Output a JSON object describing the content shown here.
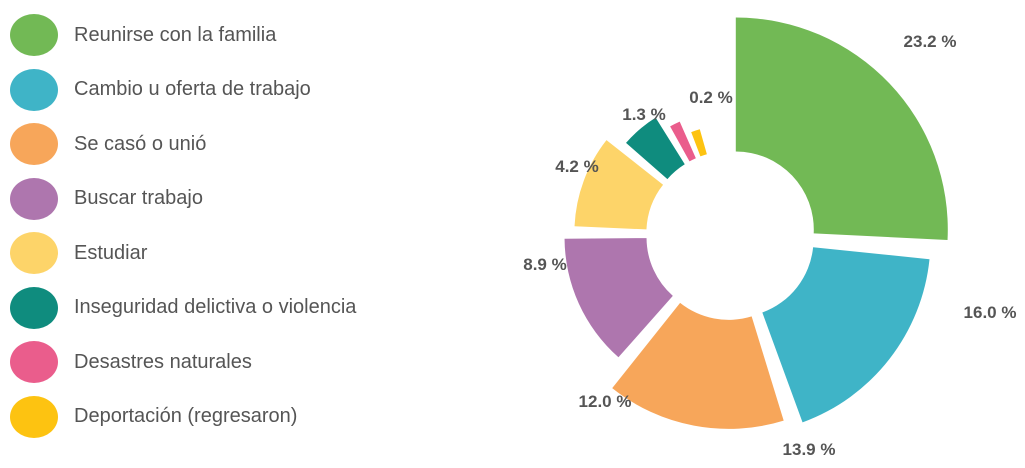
{
  "chart_data": {
    "type": "pie",
    "variant": "donut-exploded",
    "title": "",
    "categories": [
      "Reunirse con la familia",
      "Cambio u oferta de trabajo",
      "Se casó o unió",
      "Buscar trabajo",
      "Estudiar",
      "Inseguridad delictiva o violencia",
      "Desastres naturales",
      "Deportación (regresaron)"
    ],
    "values": [
      23.2,
      16.0,
      13.9,
      12.0,
      8.9,
      4.2,
      1.3,
      0.2
    ],
    "value_labels": [
      "23.2 %",
      "16.0 %",
      "13.9 %",
      "12.0 %",
      "8.9 %",
      "4.2 %",
      "1.3 %",
      "0.2 %"
    ],
    "colors": [
      "#72b955",
      "#3fb4c7",
      "#f7a65a",
      "#ae76ae",
      "#fdd469",
      "#0f8c7e",
      "#ea5d8c",
      "#fdc311"
    ],
    "legend_position": "left"
  }
}
